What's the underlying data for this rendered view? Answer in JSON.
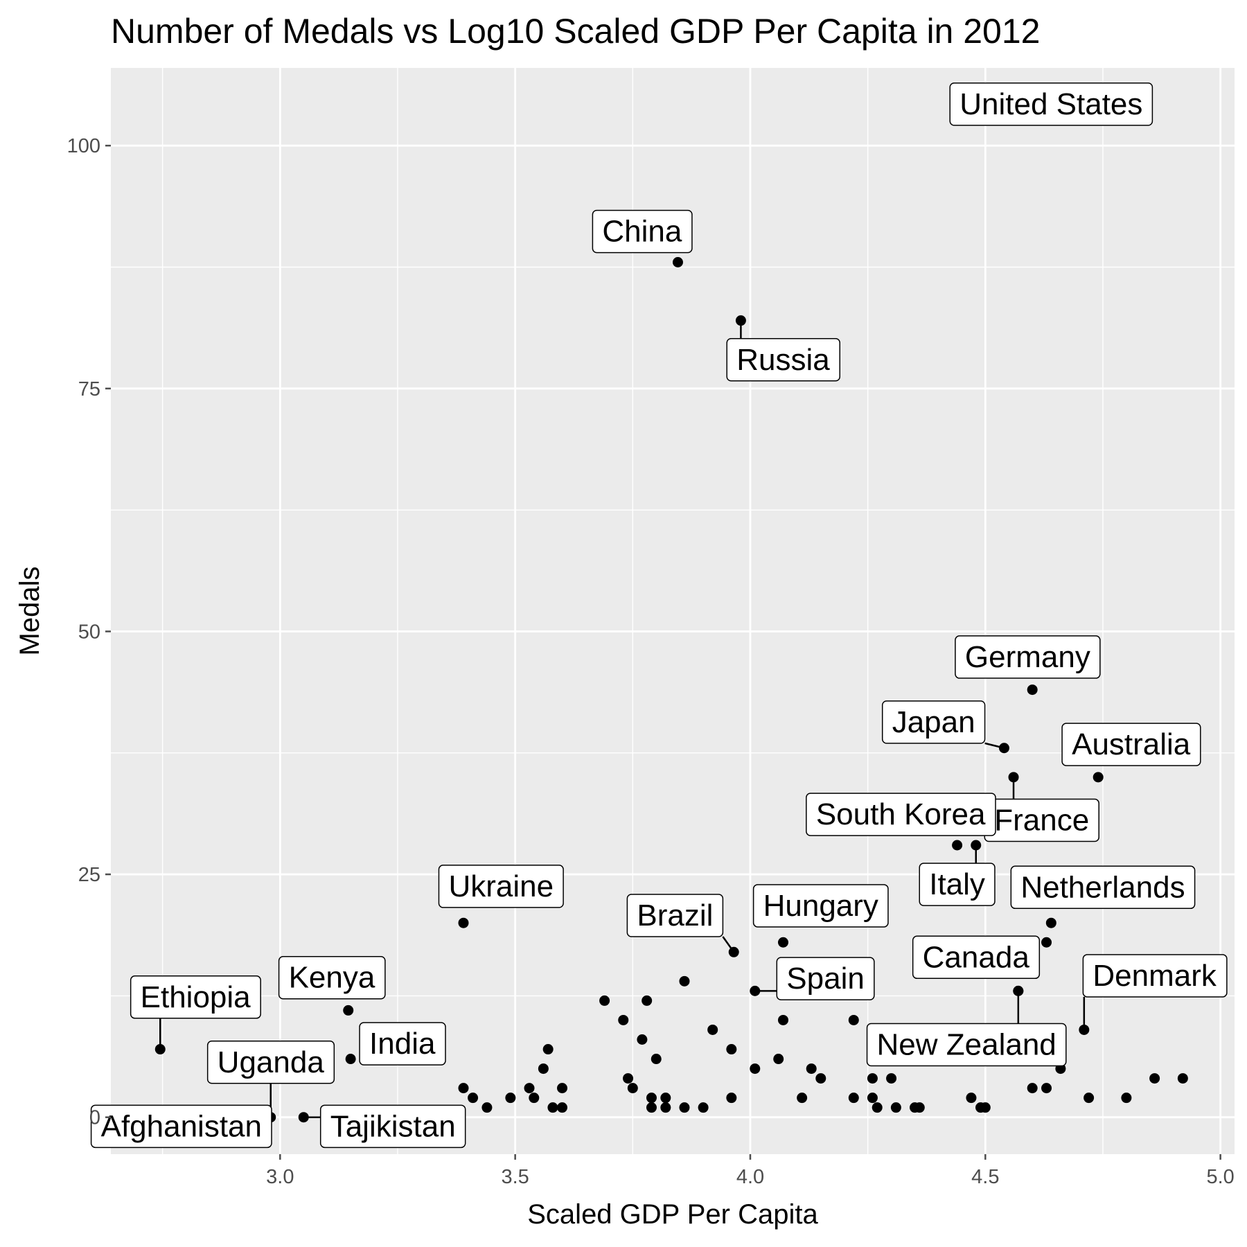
{
  "chart_data": {
    "type": "scatter",
    "title": "Number of Medals vs Log10 Scaled GDP Per Capita in  2012",
    "xlabel": "Scaled GDP Per Capita",
    "ylabel": "Medals",
    "xlim": [
      2.64,
      5.03
    ],
    "ylim": [
      -3.8,
      108
    ],
    "x_ticks": [
      3.0,
      3.5,
      4.0,
      4.5,
      5.0
    ],
    "x_tick_labels": [
      "3.0",
      "3.5",
      "4.0",
      "4.5",
      "5.0"
    ],
    "y_ticks": [
      0,
      25,
      50,
      75,
      100
    ],
    "y_tick_labels": [
      "0",
      "25",
      "50",
      "75",
      "100"
    ],
    "grid": true,
    "legend": "none",
    "colors": {
      "panel": "#ebebeb",
      "grid": "#ffffff",
      "point": "#000000",
      "ticks": "#4d4d4d"
    },
    "labeled_points": [
      {
        "label": "United States",
        "x": 4.7,
        "y": 104,
        "lx": 4.64,
        "ly": 104.3
      },
      {
        "label": "China",
        "x": 3.846,
        "y": 88,
        "lx": 3.77,
        "ly": 91.2
      },
      {
        "label": "Russia",
        "x": 3.98,
        "y": 82,
        "lx": 4.07,
        "ly": 78.0
      },
      {
        "label": "Germany",
        "x": 4.6,
        "y": 44,
        "lx": 4.59,
        "ly": 47.4
      },
      {
        "label": "Japan",
        "x": 4.54,
        "y": 38,
        "lx": 4.39,
        "ly": 40.7
      },
      {
        "label": "Australia",
        "x": 4.74,
        "y": 35,
        "lx": 4.81,
        "ly": 38.4
      },
      {
        "label": "France",
        "x": 4.56,
        "y": 35,
        "lx": 4.62,
        "ly": 30.6
      },
      {
        "label": "South Korea",
        "x": 4.44,
        "y": 28,
        "lx": 4.32,
        "ly": 31.2
      },
      {
        "label": "Italy",
        "x": 4.48,
        "y": 28,
        "lx": 4.44,
        "ly": 24.0
      },
      {
        "label": "Netherlands",
        "x": 4.64,
        "y": 20,
        "lx": 4.75,
        "ly": 23.7
      },
      {
        "label": "Ukraine",
        "x": 3.39,
        "y": 20,
        "lx": 3.47,
        "ly": 23.8
      },
      {
        "label": "Hungary",
        "x": 4.07,
        "y": 18,
        "lx": 4.15,
        "ly": 21.8
      },
      {
        "label": "Brazil",
        "x": 3.965,
        "y": 17,
        "lx": 3.84,
        "ly": 20.8
      },
      {
        "label": "Canada",
        "x": 4.57,
        "y": 13,
        "lx": 4.48,
        "ly": 16.5
      },
      {
        "label": "Spain",
        "x": 4.01,
        "y": 13,
        "lx": 4.16,
        "ly": 14.3
      },
      {
        "label": "Denmark",
        "x": 4.71,
        "y": 9,
        "lx": 4.86,
        "ly": 14.6
      },
      {
        "label": "New Zealand",
        "x": 4.57,
        "y": 13,
        "lx": 4.46,
        "ly": 7.5
      },
      {
        "label": "Kenya",
        "x": 3.145,
        "y": 11,
        "lx": 3.11,
        "ly": 14.4
      },
      {
        "label": "Ethiopia",
        "x": 2.745,
        "y": 7,
        "lx": 2.82,
        "ly": 12.4
      },
      {
        "label": "India",
        "x": 3.15,
        "y": 6,
        "lx": 3.26,
        "ly": 7.6
      },
      {
        "label": "Uganda",
        "x": 2.98,
        "y": 0,
        "lx": 2.98,
        "ly": 5.7
      },
      {
        "label": "Afghanistan",
        "x": 2.89,
        "y": 0,
        "lx": 2.79,
        "ly": -0.9
      },
      {
        "label": "Tajikistan",
        "x": 3.05,
        "y": 0,
        "lx": 3.24,
        "ly": -0.9
      }
    ],
    "unlabeled_points": [
      [
        3.39,
        3
      ],
      [
        3.41,
        2
      ],
      [
        3.44,
        1
      ],
      [
        3.49,
        2
      ],
      [
        3.53,
        3
      ],
      [
        3.54,
        2
      ],
      [
        3.56,
        5
      ],
      [
        3.57,
        7
      ],
      [
        3.58,
        1
      ],
      [
        3.6,
        3
      ],
      [
        3.6,
        1
      ],
      [
        3.69,
        12
      ],
      [
        3.73,
        10
      ],
      [
        3.74,
        4
      ],
      [
        3.75,
        3
      ],
      [
        3.77,
        8
      ],
      [
        3.78,
        12
      ],
      [
        3.79,
        2
      ],
      [
        3.79,
        1
      ],
      [
        3.8,
        6
      ],
      [
        3.82,
        2
      ],
      [
        3.82,
        1
      ],
      [
        3.86,
        14
      ],
      [
        3.86,
        1
      ],
      [
        3.9,
        1
      ],
      [
        3.92,
        9
      ],
      [
        3.96,
        7
      ],
      [
        3.96,
        2
      ],
      [
        4.01,
        5
      ],
      [
        4.06,
        6
      ],
      [
        4.07,
        10
      ],
      [
        4.11,
        2
      ],
      [
        4.13,
        5
      ],
      [
        4.15,
        4
      ],
      [
        4.22,
        10
      ],
      [
        4.22,
        2
      ],
      [
        4.26,
        2
      ],
      [
        4.26,
        4
      ],
      [
        4.27,
        1
      ],
      [
        4.3,
        4
      ],
      [
        4.31,
        1
      ],
      [
        4.35,
        1
      ],
      [
        4.36,
        1
      ],
      [
        4.47,
        2
      ],
      [
        4.49,
        1
      ],
      [
        4.5,
        1
      ],
      [
        4.6,
        3
      ],
      [
        4.63,
        3
      ],
      [
        4.66,
        5
      ],
      [
        4.63,
        18
      ],
      [
        4.72,
        2
      ],
      [
        4.8,
        2
      ],
      [
        4.86,
        4
      ],
      [
        4.92,
        4
      ]
    ]
  }
}
